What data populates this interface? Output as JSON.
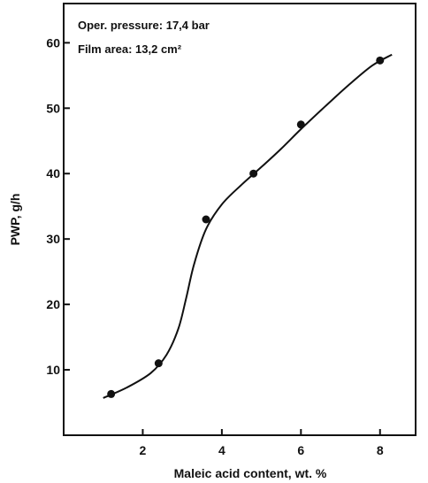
{
  "chart_data": {
    "type": "scatter",
    "title": "",
    "xlabel": "Maleic acid content, wt. %",
    "ylabel": "PWP, g/h",
    "xlim": [
      0,
      8.9
    ],
    "ylim": [
      0,
      66
    ],
    "x_ticks": [
      2,
      4,
      6,
      8
    ],
    "y_ticks": [
      10,
      20,
      30,
      40,
      50,
      60
    ],
    "grid": false,
    "legend": "none",
    "annotations": [
      "Oper. pressure: 17,4 bar",
      "Film area: 13,2 cm²"
    ],
    "series": [
      {
        "points": [
          {
            "x": 1.2,
            "y": 6.3
          },
          {
            "x": 2.4,
            "y": 11
          },
          {
            "x": 3.6,
            "y": 33
          },
          {
            "x": 4.8,
            "y": 40
          },
          {
            "x": 6.0,
            "y": 47.5
          },
          {
            "x": 8.0,
            "y": 57.3
          }
        ],
        "fit_curve": [
          {
            "x": 1.0,
            "y": 5.7
          },
          {
            "x": 1.6,
            "y": 7.3
          },
          {
            "x": 2.2,
            "y": 9.5
          },
          {
            "x": 2.6,
            "y": 12.3
          },
          {
            "x": 2.9,
            "y": 16.3
          },
          {
            "x": 3.1,
            "y": 21
          },
          {
            "x": 3.3,
            "y": 26.2
          },
          {
            "x": 3.6,
            "y": 31.5
          },
          {
            "x": 4.0,
            "y": 35.3
          },
          {
            "x": 4.5,
            "y": 38.3
          },
          {
            "x": 5.0,
            "y": 41
          },
          {
            "x": 5.5,
            "y": 43.8
          },
          {
            "x": 6.0,
            "y": 46.8
          },
          {
            "x": 6.6,
            "y": 50.2
          },
          {
            "x": 7.2,
            "y": 53.5
          },
          {
            "x": 7.8,
            "y": 56.5
          },
          {
            "x": 8.3,
            "y": 58.2
          }
        ]
      }
    ]
  },
  "colors": {
    "ink": "#111111",
    "background": "#ffffff"
  }
}
